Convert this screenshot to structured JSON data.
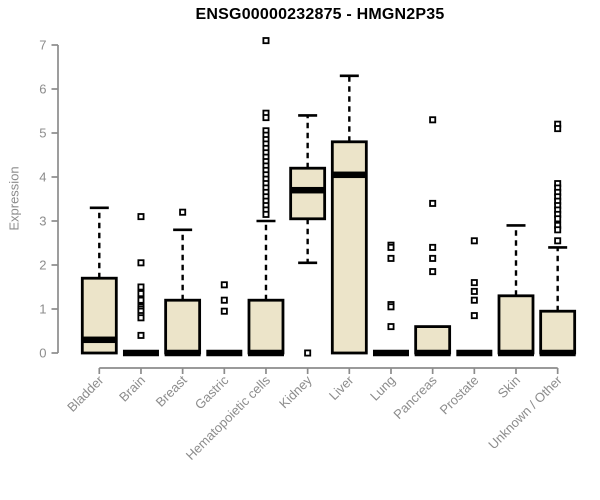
{
  "chart_data": {
    "type": "boxplot",
    "title": "ENSG00000232875 - HMGN2P35",
    "xlabel": "",
    "ylabel": "Expression",
    "ylim": [
      0,
      7
    ],
    "yticks": [
      0,
      1,
      2,
      3,
      4,
      5,
      6,
      7
    ],
    "grid": false,
    "legend": false,
    "colors": {
      "box_fill": "#ece4c9",
      "box_stroke": "#000000",
      "median": "#000000",
      "whisker": "#000000",
      "outlier_stroke": "#000000",
      "outlier_fill": "#ffffff",
      "axis": "#8c8c8c",
      "tick_text": "#8c8c8c",
      "title_text": "#000000",
      "background": "#ffffff"
    },
    "categories": [
      "Bladder",
      "Brain",
      "Breast",
      "Gastric",
      "Hematopoietic cells",
      "Kidney",
      "Liver",
      "Lung",
      "Pancreas",
      "Prostate",
      "Skin",
      "Unknown / Other"
    ],
    "boxes": [
      {
        "category": "Bladder",
        "whisker_low": 0,
        "q1": 0,
        "median": 0.3,
        "q3": 1.7,
        "whisker_high": 3.3,
        "outliers": []
      },
      {
        "category": "Brain",
        "whisker_low": 0,
        "q1": 0,
        "median": 0,
        "q3": 0,
        "whisker_high": 0,
        "outliers": [
          3.1,
          2.05,
          1.5,
          1.35,
          1.2,
          1.05,
          1.0,
          0.95,
          0.85,
          0.8,
          0.4
        ]
      },
      {
        "category": "Breast",
        "whisker_low": 0,
        "q1": 0,
        "median": 0,
        "q3": 1.2,
        "whisker_high": 2.8,
        "outliers": [
          3.2
        ]
      },
      {
        "category": "Gastric",
        "whisker_low": 0,
        "q1": 0,
        "median": 0,
        "q3": 0,
        "whisker_high": 0,
        "outliers": [
          1.55,
          1.2,
          0.95
        ]
      },
      {
        "category": "Hematopoietic cells",
        "whisker_low": 0,
        "q1": 0,
        "median": 0,
        "q3": 1.2,
        "whisker_high": 3.0,
        "outliers": [
          7.1,
          5.45,
          5.35,
          5.05,
          4.95,
          4.85,
          4.75,
          4.65,
          4.55,
          4.45,
          4.35,
          4.25,
          4.15,
          4.05,
          3.95,
          3.85,
          3.75,
          3.65,
          3.55,
          3.45,
          3.35,
          3.25,
          3.15
        ]
      },
      {
        "category": "Kidney",
        "whisker_low": 2.05,
        "q1": 3.05,
        "median": 3.7,
        "q3": 4.2,
        "whisker_high": 5.4,
        "outliers": [
          0
        ]
      },
      {
        "category": "Liver",
        "whisker_low": 0,
        "q1": 0,
        "median": 4.05,
        "q3": 4.8,
        "whisker_high": 6.3,
        "outliers": []
      },
      {
        "category": "Lung",
        "whisker_low": 0,
        "q1": 0,
        "median": 0,
        "q3": 0,
        "whisker_high": 0,
        "outliers": [
          2.45,
          2.4,
          2.15,
          1.1,
          1.05,
          0.6
        ]
      },
      {
        "category": "Pancreas",
        "whisker_low": 0,
        "q1": 0,
        "median": 0,
        "q3": 0.6,
        "whisker_high": 0.6,
        "outliers": [
          5.3,
          3.4,
          2.4,
          2.15,
          1.85
        ]
      },
      {
        "category": "Prostate",
        "whisker_low": 0,
        "q1": 0,
        "median": 0,
        "q3": 0,
        "whisker_high": 0,
        "outliers": [
          2.55,
          1.6,
          1.4,
          1.2,
          0.85
        ]
      },
      {
        "category": "Skin",
        "whisker_low": 0,
        "q1": 0,
        "median": 0,
        "q3": 1.3,
        "whisker_high": 2.9,
        "outliers": []
      },
      {
        "category": "Unknown / Other",
        "whisker_low": 0,
        "q1": 0,
        "median": 0,
        "q3": 0.95,
        "whisker_high": 2.4,
        "outliers": [
          5.2,
          5.1,
          3.85,
          3.75,
          3.65,
          3.55,
          3.45,
          3.35,
          3.25,
          3.15,
          3.05,
          2.9,
          2.8,
          2.55
        ]
      }
    ]
  }
}
